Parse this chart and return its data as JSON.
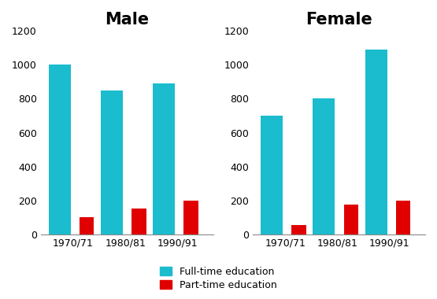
{
  "male_fulltime": [
    1000,
    850,
    890
  ],
  "male_parttime": [
    100,
    150,
    200
  ],
  "female_fulltime": [
    700,
    800,
    1090
  ],
  "female_parttime": [
    55,
    175,
    200
  ],
  "periods": [
    "1970/71",
    "1980/81",
    "1990/91"
  ],
  "title_male": "Male",
  "title_female": "Female",
  "color_fulltime": "#1ABCCE",
  "color_parttime": "#E00000",
  "ylim": [
    0,
    1200
  ],
  "yticks": [
    0,
    200,
    400,
    600,
    800,
    1000,
    1200
  ],
  "legend_fulltime": "Full-time education",
  "legend_parttime": "Part-time education",
  "ft_bar_width": 0.42,
  "pt_bar_width": 0.28,
  "title_fontsize": 15,
  "tick_fontsize": 9,
  "legend_fontsize": 9
}
